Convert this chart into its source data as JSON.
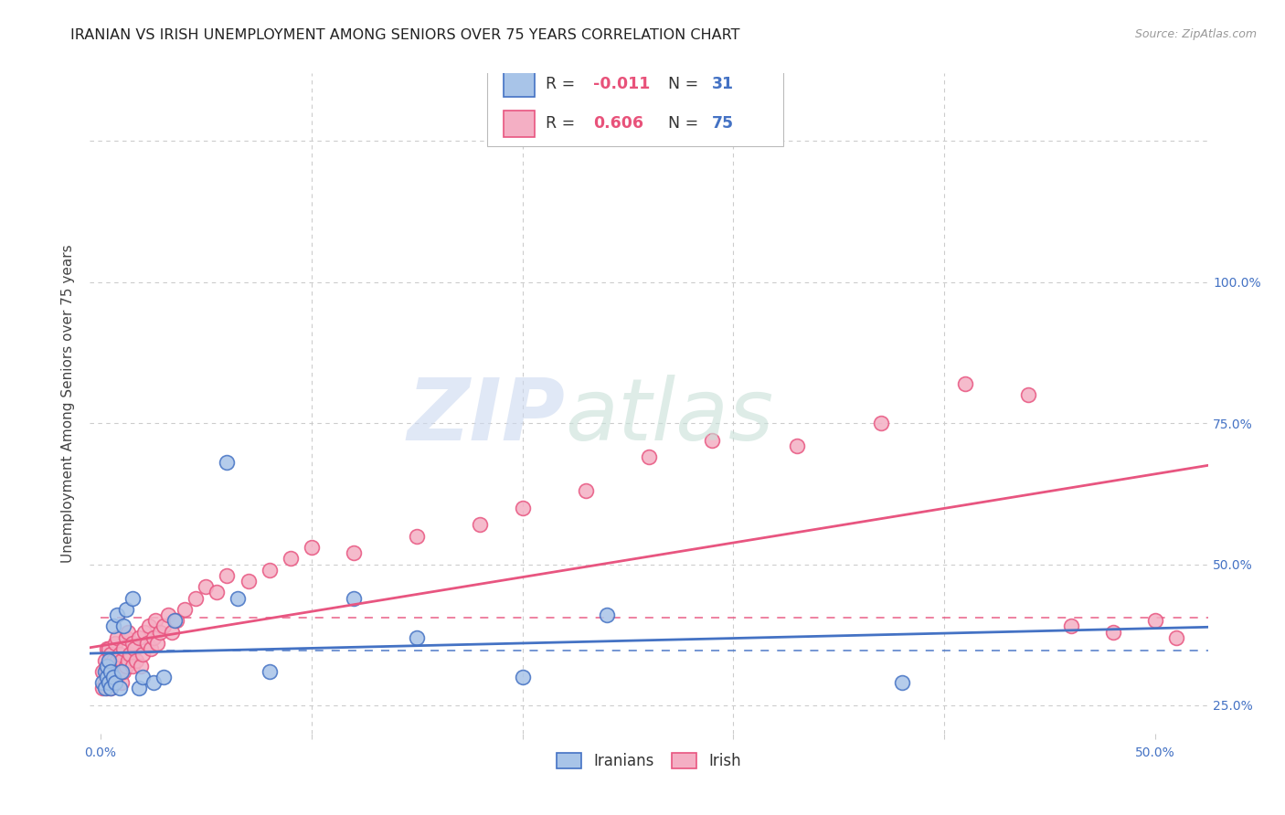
{
  "title": "IRANIAN VS IRISH UNEMPLOYMENT AMONG SENIORS OVER 75 YEARS CORRELATION CHART",
  "source": "Source: ZipAtlas.com",
  "ylabel_label": "Unemployment Among Seniors over 75 years",
  "xlim": [
    -0.005,
    0.525
  ],
  "ylim": [
    -0.05,
    1.12
  ],
  "iranian_color": "#a8c4e8",
  "irish_color": "#f4afc4",
  "iranian_line_color": "#4472c4",
  "irish_line_color": "#e85580",
  "grid_color": "#cccccc",
  "legend_R_iranian": "-0.011",
  "legend_N_iranian": "31",
  "legend_R_irish": "0.606",
  "legend_N_irish": "75",
  "iranians_label": "Iranians",
  "irish_label": "Irish",
  "iranian_x": [
    0.001,
    0.002,
    0.002,
    0.003,
    0.003,
    0.004,
    0.004,
    0.005,
    0.005,
    0.006,
    0.006,
    0.007,
    0.008,
    0.009,
    0.01,
    0.011,
    0.012,
    0.015,
    0.018,
    0.02,
    0.025,
    0.03,
    0.035,
    0.06,
    0.065,
    0.08,
    0.12,
    0.15,
    0.2,
    0.24,
    0.38
  ],
  "iranian_y": [
    0.04,
    0.03,
    0.06,
    0.05,
    0.07,
    0.04,
    0.08,
    0.03,
    0.06,
    0.05,
    0.14,
    0.04,
    0.16,
    0.03,
    0.06,
    0.14,
    0.17,
    0.19,
    0.03,
    0.05,
    0.04,
    0.05,
    0.15,
    0.43,
    0.19,
    0.06,
    0.19,
    0.12,
    0.05,
    0.16,
    0.04
  ],
  "irish_x": [
    0.001,
    0.001,
    0.002,
    0.002,
    0.003,
    0.003,
    0.003,
    0.004,
    0.004,
    0.004,
    0.005,
    0.005,
    0.005,
    0.006,
    0.006,
    0.007,
    0.007,
    0.007,
    0.008,
    0.008,
    0.008,
    0.009,
    0.009,
    0.01,
    0.01,
    0.011,
    0.011,
    0.012,
    0.012,
    0.013,
    0.013,
    0.014,
    0.015,
    0.015,
    0.016,
    0.017,
    0.018,
    0.019,
    0.02,
    0.021,
    0.022,
    0.023,
    0.024,
    0.025,
    0.026,
    0.027,
    0.028,
    0.03,
    0.032,
    0.034,
    0.036,
    0.04,
    0.045,
    0.05,
    0.055,
    0.06,
    0.07,
    0.08,
    0.09,
    0.1,
    0.12,
    0.15,
    0.18,
    0.2,
    0.23,
    0.26,
    0.29,
    0.33,
    0.37,
    0.41,
    0.44,
    0.46,
    0.48,
    0.5,
    0.51
  ],
  "irish_y": [
    0.03,
    0.06,
    0.04,
    0.08,
    0.03,
    0.06,
    0.1,
    0.04,
    0.07,
    0.1,
    0.03,
    0.06,
    0.09,
    0.05,
    0.08,
    0.04,
    0.07,
    0.11,
    0.05,
    0.08,
    0.12,
    0.06,
    0.09,
    0.04,
    0.08,
    0.06,
    0.1,
    0.07,
    0.12,
    0.08,
    0.13,
    0.09,
    0.07,
    0.11,
    0.1,
    0.08,
    0.12,
    0.07,
    0.09,
    0.13,
    0.11,
    0.14,
    0.1,
    0.12,
    0.15,
    0.11,
    0.13,
    0.14,
    0.16,
    0.13,
    0.15,
    0.17,
    0.19,
    0.21,
    0.2,
    0.23,
    0.22,
    0.24,
    0.26,
    0.28,
    0.27,
    0.3,
    0.32,
    0.35,
    0.38,
    0.44,
    0.47,
    0.46,
    0.5,
    0.57,
    0.55,
    0.14,
    0.13,
    0.15,
    0.12
  ],
  "y_ticks": [
    0.0,
    0.25,
    0.5,
    0.75,
    1.0
  ],
  "x_ticks": [
    0.0,
    0.1,
    0.2,
    0.3,
    0.4,
    0.5
  ]
}
